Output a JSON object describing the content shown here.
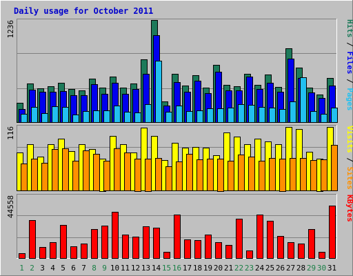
{
  "chart_data": {
    "type": "bar",
    "title": "Daily usage for October 2011",
    "days": [
      "1",
      "2",
      "3",
      "4",
      "5",
      "6",
      "7",
      "8",
      "9",
      "10",
      "11",
      "12",
      "13",
      "14",
      "15",
      "16",
      "17",
      "18",
      "19",
      "20",
      "21",
      "22",
      "23",
      "24",
      "25",
      "26",
      "27",
      "28",
      "29",
      "30",
      "31"
    ],
    "weekend_days": [
      "1",
      "2",
      "8",
      "9",
      "15",
      "16",
      "22",
      "23",
      "29",
      "30"
    ],
    "colors": {
      "background": "#c0c0c0",
      "frame_outer": "#ffffff",
      "title": "#0000cc",
      "pages": "#1d7a5a",
      "files": "#0000ee",
      "hits": "#22c0f0",
      "visits": "#ffff00",
      "sites": "#ff9000",
      "kbytes": "#ff0000",
      "weekday_label": "#000000",
      "weekend_label": "#1a7f46"
    },
    "panels": [
      {
        "id": "hits",
        "ymax": 1236,
        "ymax_label": "1236",
        "right_labels": [
          {
            "text": "Pages",
            "color": "#22c0f0"
          },
          {
            "text": " / ",
            "color": "#000000"
          },
          {
            "text": "Files",
            "color": "#0000ee"
          },
          {
            "text": " / ",
            "color": "#000000"
          },
          {
            "text": "Hits",
            "color": "#1d7a5a"
          }
        ],
        "series": [
          {
            "name": "Hits",
            "color": "#1d7a5a",
            "values": [
              230,
              468,
              413,
              437,
              475,
              399,
              383,
              528,
              415,
              551,
              416,
              466,
              757,
              1236,
              251,
              581,
              440,
              565,
              416,
              693,
              454,
              431,
              588,
              452,
              578,
              424,
              896,
              661,
              421,
              335,
              531
            ]
          },
          {
            "name": "Files",
            "color": "#0000ee",
            "values": [
              160,
              396,
              366,
              370,
              379,
              326,
              328,
              459,
              342,
              472,
              345,
              402,
              588,
              1054,
              199,
              484,
              370,
              501,
              352,
              607,
              384,
              384,
              548,
              403,
              476,
              364,
              767,
              536,
              357,
              291,
              439
            ]
          },
          {
            "name": "Pages",
            "color": "#22c0f0",
            "values": [
              100,
              180,
              106,
              190,
              185,
              94,
              134,
              140,
              138,
              200,
              128,
              120,
              216,
              742,
              122,
              198,
              132,
              146,
              170,
              169,
              177,
              218,
              208,
              185,
              172,
              161,
              249,
              542,
              137,
              101,
              179
            ]
          }
        ]
      },
      {
        "id": "visits",
        "ymax": 116,
        "ymax_label": "116",
        "right_labels": [
          {
            "text": "Sites",
            "color": "#ff9000"
          },
          {
            "text": " / ",
            "color": "#000000"
          },
          {
            "text": "Visits",
            "color": "#ffff00"
          }
        ],
        "series": [
          {
            "name": "Visits",
            "color": "#ffff00",
            "values": [
              69,
              84,
              61,
              83,
              94,
              71,
              84,
              75,
              58,
              99,
              83,
              69,
              114,
              99,
              55,
              86,
              77,
              78,
              77,
              63,
              105,
              97,
              83,
              93,
              89,
              83,
              115,
              111,
              70,
              58,
              115
            ]
          },
          {
            "name": "Sites",
            "color": "#ff9000",
            "values": [
              49,
              57,
              50,
              75,
              76,
              54,
              72,
              66,
              54,
              76,
              68,
              58,
              58,
              59,
              44,
              53,
              66,
              56,
              57,
              58,
              54,
              65,
              61,
              54,
              59,
              58,
              59,
              59,
              55,
              56,
              82
            ]
          }
        ]
      },
      {
        "id": "kbytes",
        "ymax": 44558,
        "ymax_label": "44558",
        "right_labels": [
          {
            "text": "KBytes",
            "color": "#ff0000"
          }
        ],
        "series": [
          {
            "name": "KBytes",
            "color": "#ff0000",
            "values": [
              3500,
              27000,
              7800,
              11500,
              23500,
              8500,
              10500,
              20500,
              23000,
              33000,
              16500,
              15000,
              22500,
              21500,
              4500,
              31000,
              13000,
              12500,
              16500,
              11500,
              9500,
              28000,
              5500,
              31000,
              26500,
              15500,
              11500,
              10500,
              20500,
              4500,
              37000
            ]
          }
        ]
      }
    ]
  }
}
